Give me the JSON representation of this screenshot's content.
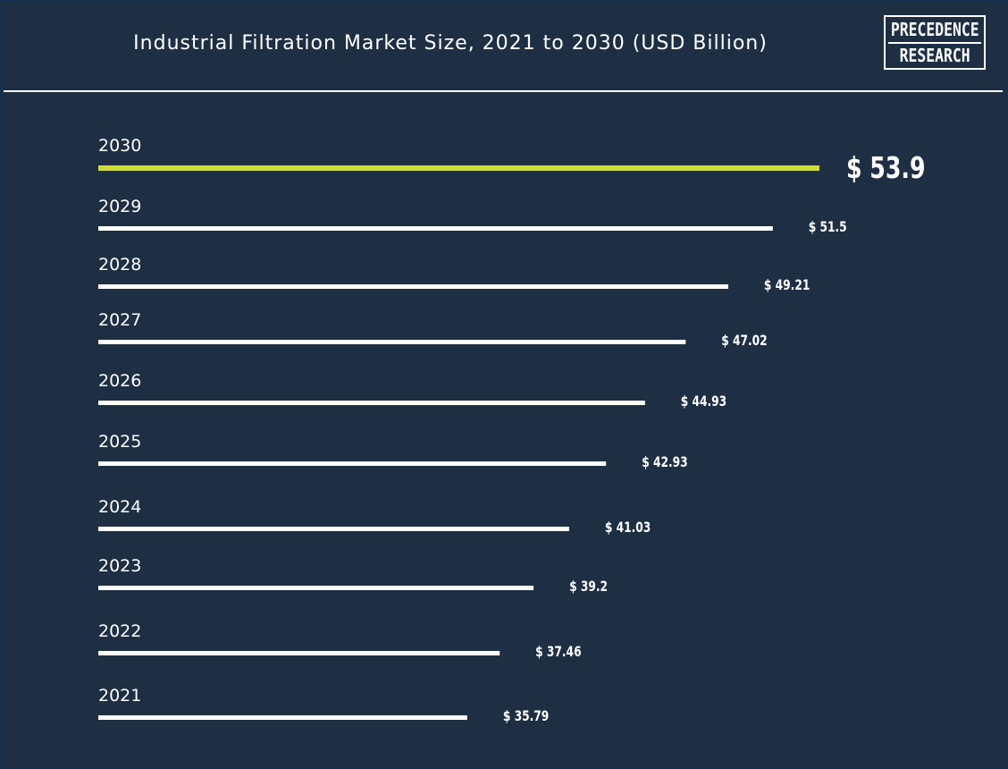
{
  "title": "Industrial Filtration Market Size, 2021 to 2030 (USD Billion)",
  "logo": {
    "line1": "PRECEDENCE",
    "line2": "RESEARCH"
  },
  "colors": {
    "background": "#1e2f43",
    "bar": "#ffffff",
    "highlight_bar": "#cddc39",
    "text": "#ffffff"
  },
  "chart_data": {
    "type": "bar",
    "orientation": "horizontal",
    "categories": [
      "2030",
      "2029",
      "2028",
      "2027",
      "2026",
      "2025",
      "2024",
      "2023",
      "2022",
      "2021"
    ],
    "values": [
      53.9,
      51.5,
      49.21,
      47.02,
      44.93,
      42.93,
      41.03,
      39.2,
      37.46,
      35.79
    ],
    "value_labels": [
      "$ 53.9",
      "$ 51.5",
      "$ 49.21",
      "$ 47.02",
      "$ 44.93",
      "$ 42.93",
      "$ 41.03",
      "$ 39.2",
      "$ 37.46",
      "$ 35.79"
    ],
    "highlight_category": "2030",
    "title": "Industrial Filtration Market Size, 2021 to 2030 (USD Billion)",
    "xlabel": "",
    "ylabel": "",
    "grid": false,
    "legend": false
  }
}
